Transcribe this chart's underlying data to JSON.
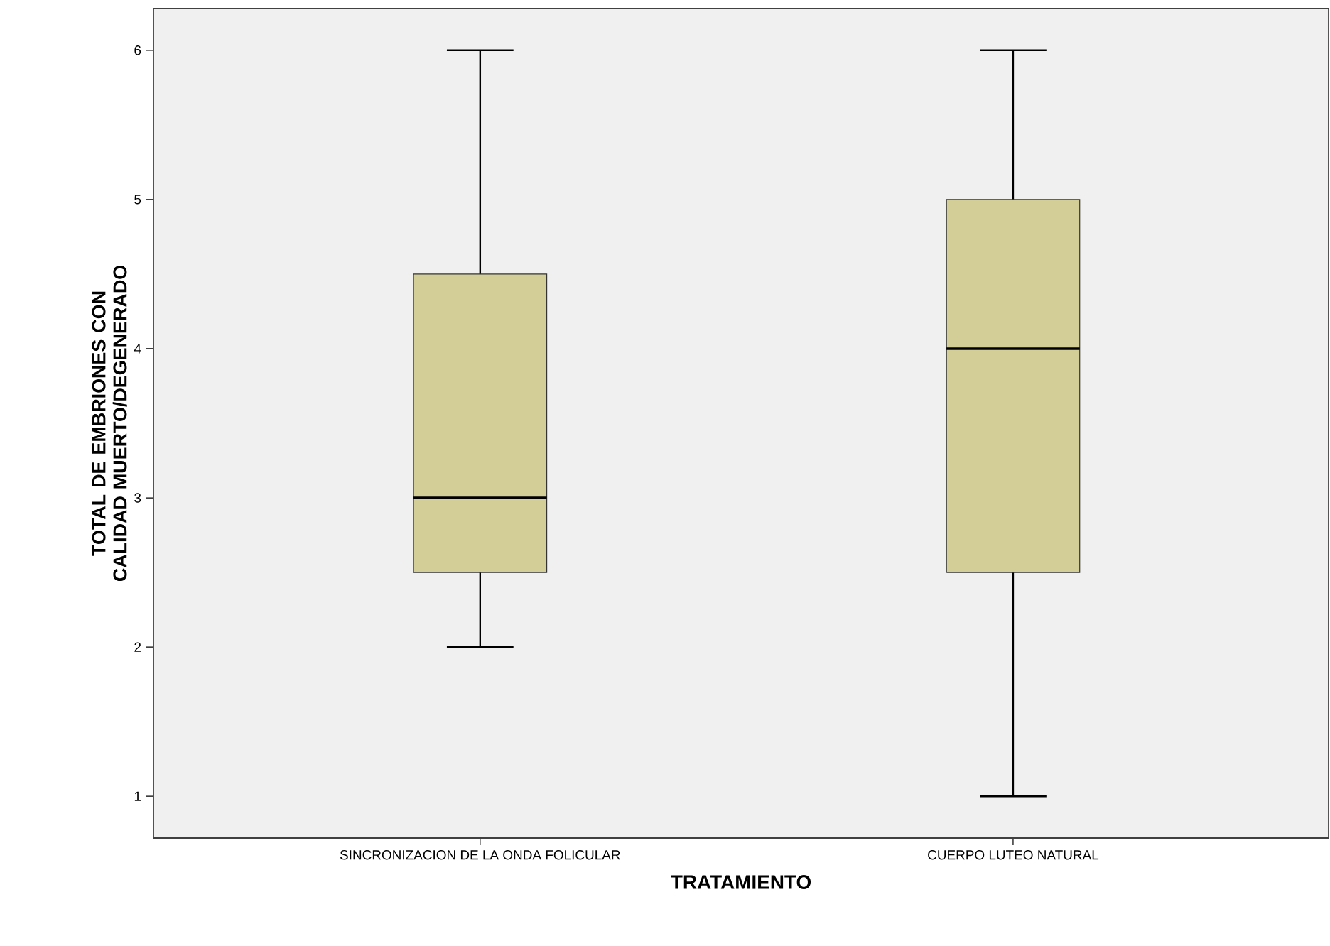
{
  "chart_data": {
    "type": "box",
    "categories": [
      "SINCRONIZACION DE LA ONDA FOLICULAR",
      "CUERPO LUTEO NATURAL"
    ],
    "boxes": [
      {
        "low": 2,
        "q1": 2.5,
        "median": 3,
        "q3": 4.5,
        "high": 6
      },
      {
        "low": 1,
        "q1": 2.5,
        "median": 4,
        "q3": 5,
        "high": 6
      }
    ],
    "color": "#d3ce97",
    "xlabel": "TRATAMIENTO",
    "ylabel": "TOTAL DE EMBRIONES CON CALIDAD MUERTO/DEGENERADO",
    "ylim": [
      0.72,
      6.28
    ],
    "yticks": [
      1,
      2,
      3,
      4,
      5,
      6
    ]
  }
}
